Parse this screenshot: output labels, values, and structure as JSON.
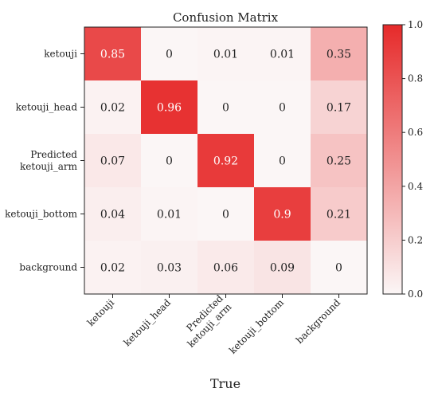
{
  "chart_data": {
    "type": "heatmap",
    "title": "Confusion Matrix",
    "xlabel": "True",
    "ylabel": "",
    "row_labels": [
      [
        "ketouji"
      ],
      [
        "ketouji_head"
      ],
      [
        "Predicted",
        "ketouji_arm"
      ],
      [
        "ketouji_bottom"
      ],
      [
        "background"
      ]
    ],
    "col_labels": [
      [
        "ketouji"
      ],
      [
        "ketouji_head"
      ],
      [
        "Predicted",
        "ketouji_arm"
      ],
      [
        "ketouji_bottom"
      ],
      [
        "background"
      ]
    ],
    "matrix": [
      [
        0.85,
        0,
        0.01,
        0.01,
        0.35
      ],
      [
        0.02,
        0.96,
        0,
        0,
        0.17
      ],
      [
        0.07,
        0,
        0.92,
        0,
        0.25
      ],
      [
        0.04,
        0.01,
        0,
        0.9,
        0.21
      ],
      [
        0.02,
        0.03,
        0.06,
        0.09,
        0
      ]
    ],
    "colorbar": {
      "min": 0.0,
      "max": 1.0,
      "ticks": [
        "0.0",
        "0.2",
        "0.4",
        "0.6",
        "0.8",
        "1.0"
      ]
    },
    "colors": {
      "low": "#fbf6f6",
      "high": "#e62a2a"
    },
    "grid": false
  }
}
